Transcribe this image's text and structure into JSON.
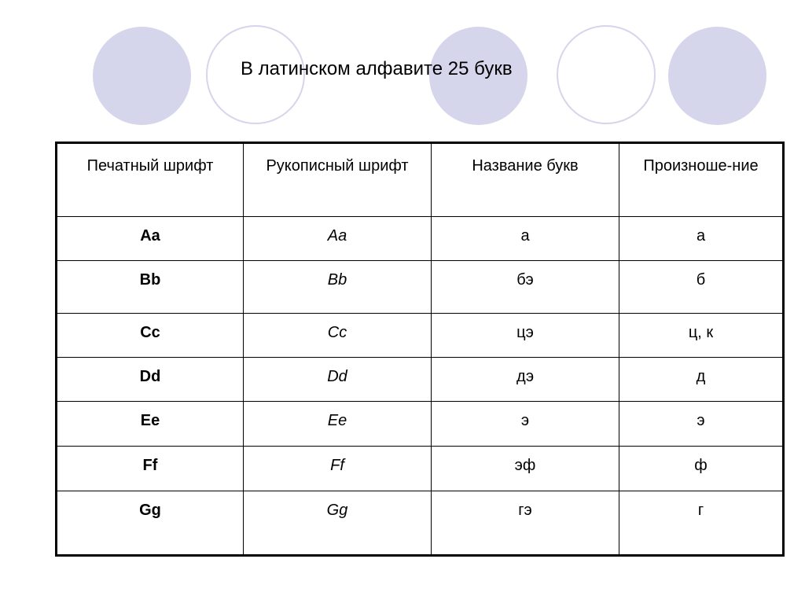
{
  "slide": {
    "title": "В латинском алфавите 25 букв",
    "accent_color": "#d5d5ec"
  },
  "table": {
    "headers": {
      "printed": "Печатный шрифт",
      "handwritten": "Рукописный шрифт",
      "name": "Название букв",
      "pronunciation": "Произноше-ние"
    },
    "rows": [
      {
        "printed": "Aa",
        "handwritten": "Aa",
        "name": "а",
        "pronunciation": "а"
      },
      {
        "printed": "Bb",
        "handwritten": "Bb",
        "name": "бэ",
        "pronunciation": "б"
      },
      {
        "printed": "Cc",
        "handwritten": "Cc",
        "name": "цэ",
        "pronunciation": "ц, к"
      },
      {
        "printed": "Dd",
        "handwritten": "Dd",
        "name": "дэ",
        "pronunciation": "д"
      },
      {
        "printed": "Ee",
        "handwritten": "Ee",
        "name": "э",
        "pronunciation": "э"
      },
      {
        "printed": "Ff",
        "handwritten": "Ff",
        "name": "эф",
        "pronunciation": "ф"
      },
      {
        "printed": "Gg",
        "handwritten": "Gg",
        "name": "гэ",
        "pronunciation": "г"
      }
    ]
  }
}
